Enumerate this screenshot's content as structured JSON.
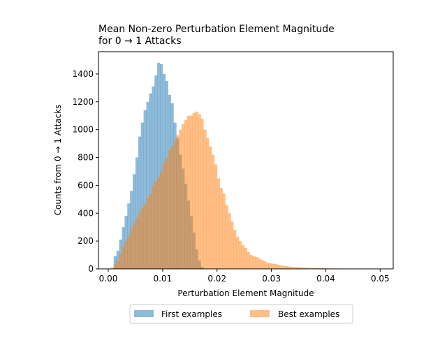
{
  "chart_data": {
    "type": "histogram",
    "title_lines": [
      "Mean Non-zero Perturbation Element Magnitude",
      "for 0 → 1 Attacks"
    ],
    "xlabel": "Perturbation Element Magnitude",
    "ylabel": "Counts from 0 → 1 Attacks",
    "xlim": [
      -0.0018,
      0.0524
    ],
    "ylim": [
      0,
      1560
    ],
    "xticks": [
      0.0,
      0.01,
      0.02,
      0.03,
      0.04,
      0.05
    ],
    "xtick_labels": [
      "0.00",
      "0.01",
      "0.02",
      "0.03",
      "0.04",
      "0.05"
    ],
    "yticks": [
      0,
      200,
      400,
      600,
      800,
      1000,
      1200,
      1400
    ],
    "ytick_labels": [
      "0",
      "200",
      "400",
      "600",
      "800",
      "1000",
      "1200",
      "1400"
    ],
    "grid": false,
    "legend_position": "below plot, centered",
    "legend_columns": 2,
    "bin_width": 0.0005,
    "series": [
      {
        "name": "First examples",
        "color": "#1f77b4",
        "alpha": 0.5,
        "x_start": 0.001,
        "values": [
          90,
          130,
          210,
          300,
          380,
          470,
          560,
          680,
          800,
          950,
          1050,
          1140,
          1200,
          1260,
          1310,
          1390,
          1480,
          1470,
          1400,
          1350,
          1250,
          1190,
          1050,
          940,
          820,
          720,
          610,
          490,
          380,
          260,
          140,
          60,
          15
        ]
      },
      {
        "name": "Best examples",
        "color": "#ff7f0e",
        "alpha": 0.5,
        "x_start": 0.0005,
        "values": [
          10,
          35,
          60,
          110,
          160,
          200,
          240,
          290,
          330,
          370,
          400,
          440,
          470,
          510,
          540,
          600,
          630,
          660,
          700,
          760,
          800,
          850,
          880,
          920,
          960,
          1000,
          1040,
          1070,
          1100,
          1100,
          1120,
          1130,
          1110,
          1080,
          1000,
          940,
          880,
          820,
          750,
          650,
          580,
          540,
          460,
          400,
          340,
          280,
          230,
          200,
          170,
          150,
          120,
          100,
          90,
          85,
          75,
          65,
          55,
          45,
          40,
          38,
          35,
          30,
          25,
          22,
          20,
          18,
          15,
          13,
          12,
          11,
          10,
          9,
          8,
          7,
          6,
          6,
          5,
          5,
          4,
          4,
          3,
          3,
          3,
          2,
          2,
          2,
          2,
          1,
          1,
          1,
          1,
          1,
          1
        ]
      }
    ]
  }
}
